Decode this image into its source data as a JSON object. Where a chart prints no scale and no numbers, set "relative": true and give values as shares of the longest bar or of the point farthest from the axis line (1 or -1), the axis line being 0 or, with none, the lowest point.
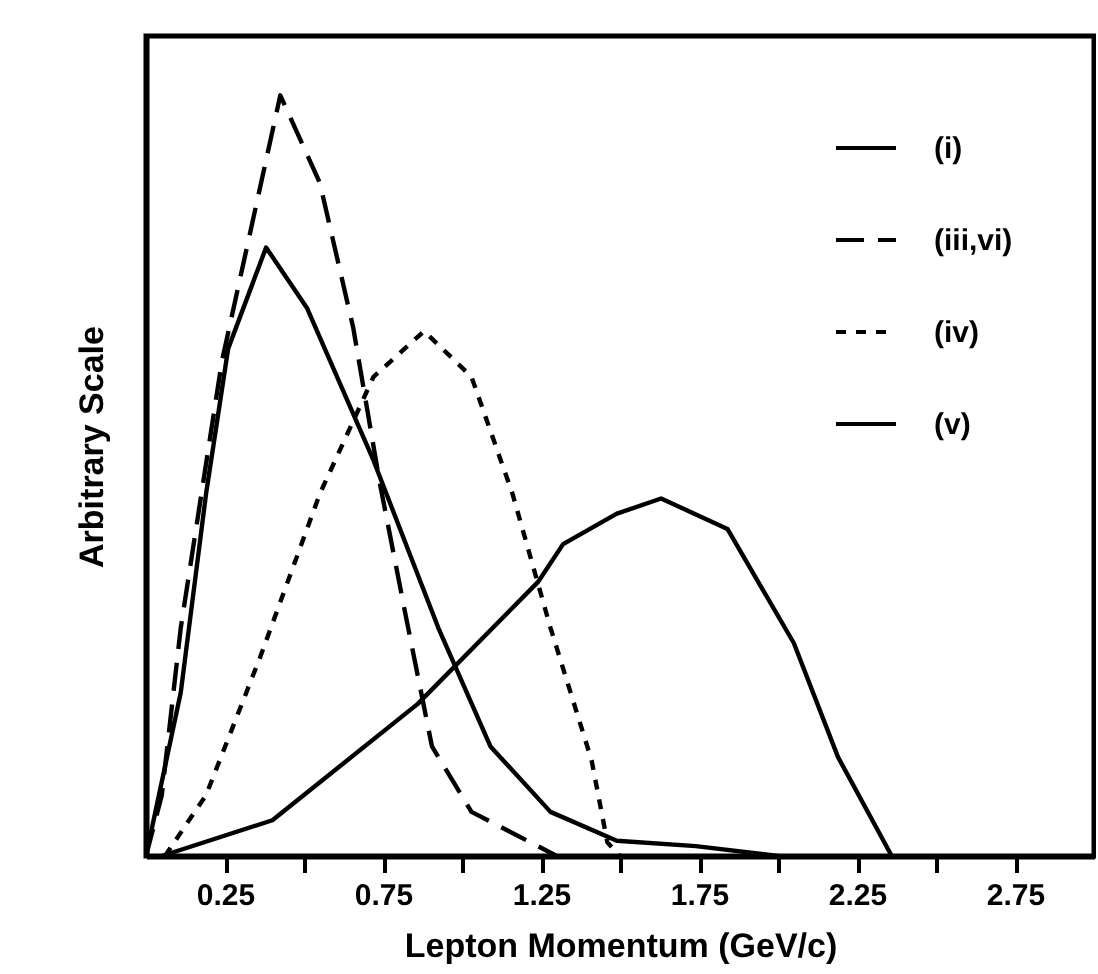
{
  "chart_data": {
    "type": "line",
    "relative": true,
    "xlabel": "Lepton Momentum (GeV/c)",
    "ylabel": "Arbitrary Scale",
    "xlim": [
      0,
      3.0
    ],
    "xticks": [
      0.25,
      {
        "value": 0.5,
        "label": null
      },
      0.75,
      {
        "value": 1.0,
        "label": null
      },
      1.25,
      {
        "value": 1.5,
        "label": null
      },
      1.75,
      {
        "value": 2.0,
        "label": null
      },
      2.25,
      {
        "value": 2.5,
        "label": null
      },
      2.75
    ],
    "legend": "top right",
    "grid": false,
    "marker": "none",
    "series": [
      {
        "name": "(i)",
        "color": "#000000",
        "line_style": "solid",
        "x": [
          0.05,
          0.4,
          0.86,
          1.24,
          1.32,
          1.49,
          1.63,
          1.84,
          2.05,
          2.19,
          2.36
        ],
        "values": [
          0,
          0.047,
          0.2,
          0.36,
          0.41,
          0.45,
          0.47,
          0.43,
          0.28,
          0.13,
          0
        ]
      },
      {
        "name": "(iii,vi)",
        "color": "#000000",
        "line_style": "dashed",
        "x": [
          0,
          0.05,
          0.11,
          0.24,
          0.425,
          0.55,
          0.656,
          0.74,
          0.82,
          0.905,
          1.03,
          1.24,
          1.3
        ],
        "values": [
          0,
          0.08,
          0.3,
          0.65,
          1.0,
          0.885,
          0.694,
          0.49,
          0.32,
          0.144,
          0.058,
          0.013,
          0
        ]
      },
      {
        "name": "(iv)",
        "color": "#000000",
        "line_style": "dotted",
        "x": [
          0.06,
          0.19,
          0.36,
          0.55,
          0.72,
          0.88,
          1.03,
          1.16,
          1.28,
          1.41,
          1.46,
          1.5
        ],
        "values": [
          0,
          0.08,
          0.26,
          0.476,
          0.63,
          0.69,
          0.63,
          0.476,
          0.3,
          0.126,
          0.018,
          0
        ]
      },
      {
        "name": "(v)",
        "color": "#000000",
        "line_style": "solid",
        "x": [
          0,
          0.11,
          0.19,
          0.26,
          0.38,
          0.51,
          0.72,
          0.925,
          1.09,
          1.28,
          1.49,
          1.74,
          2.0
        ],
        "values": [
          0,
          0.215,
          0.476,
          0.667,
          0.8,
          0.72,
          0.52,
          0.3,
          0.144,
          0.058,
          0.02,
          0.013,
          0
        ]
      }
    ]
  }
}
